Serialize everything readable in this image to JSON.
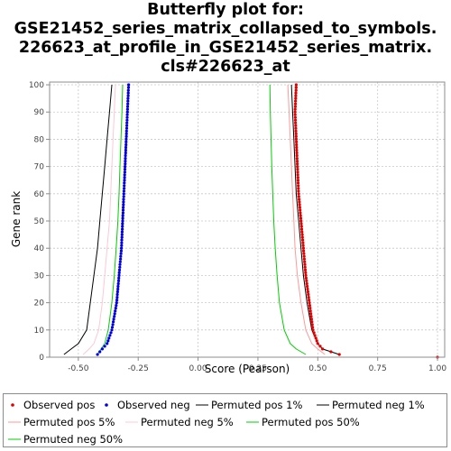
{
  "title_lines": [
    "Butterfly plot for:",
    "GSE21452_series_matrix_collapsed_to_symbols.",
    "226623_at_profile_in_GSE21452_series_matrix.",
    "cls#226623_at"
  ],
  "chart_data": {
    "type": "scatter",
    "title": "Butterfly plot for: GSE21452_series_matrix_collapsed_to_symbols.226623_at_profile_in_GSE21452_series_matrix.cls#226623_at",
    "xlabel": "Score (Pearson)",
    "ylabel": "Gene rank",
    "xlim": [
      -0.62,
      1.03
    ],
    "ylim": [
      0,
      101
    ],
    "x_ticks": [
      -0.5,
      -0.25,
      0.0,
      0.25,
      0.5,
      0.75,
      1.0
    ],
    "x_tick_labels": [
      "-0.50",
      "-0.25",
      "0.00",
      "0.25",
      "0.50",
      "0.75",
      "1.00"
    ],
    "y_ticks": [
      0,
      10,
      20,
      30,
      40,
      50,
      60,
      70,
      80,
      90,
      100
    ],
    "y_tick_labels": [
      "0",
      "10",
      "20",
      "30",
      "40",
      "50",
      "60",
      "70",
      "80",
      "90",
      "100"
    ],
    "grid": true,
    "legend_position": "bottom",
    "series": [
      {
        "name": "Observed pos",
        "kind": "points",
        "color": "#e00000",
        "points": [
          [
            0.41,
            100
          ],
          [
            0.405,
            90
          ],
          [
            0.41,
            80
          ],
          [
            0.415,
            70
          ],
          [
            0.42,
            60
          ],
          [
            0.43,
            50
          ],
          [
            0.44,
            40
          ],
          [
            0.45,
            30
          ],
          [
            0.465,
            20
          ],
          [
            0.48,
            10
          ],
          [
            0.5,
            5
          ],
          [
            0.52,
            3
          ],
          [
            0.59,
            1
          ],
          [
            1.0,
            0
          ]
        ]
      },
      {
        "name": "Observed neg",
        "kind": "points",
        "color": "#0000e0",
        "points": [
          [
            -0.29,
            100
          ],
          [
            -0.295,
            90
          ],
          [
            -0.3,
            80
          ],
          [
            -0.305,
            70
          ],
          [
            -0.31,
            60
          ],
          [
            -0.315,
            50
          ],
          [
            -0.32,
            40
          ],
          [
            -0.33,
            30
          ],
          [
            -0.34,
            20
          ],
          [
            -0.36,
            10
          ],
          [
            -0.38,
            5
          ],
          [
            -0.4,
            3
          ],
          [
            -0.42,
            1
          ]
        ]
      },
      {
        "name": "Permuted pos 1%",
        "kind": "line",
        "color": "#000000",
        "points": [
          [
            0.39,
            100
          ],
          [
            0.395,
            90
          ],
          [
            0.4,
            80
          ],
          [
            0.405,
            70
          ],
          [
            0.41,
            60
          ],
          [
            0.42,
            50
          ],
          [
            0.43,
            40
          ],
          [
            0.44,
            30
          ],
          [
            0.455,
            20
          ],
          [
            0.475,
            10
          ],
          [
            0.5,
            5
          ],
          [
            0.52,
            3
          ],
          [
            0.59,
            1
          ]
        ]
      },
      {
        "name": "Permuted neg 1%",
        "kind": "line",
        "color": "#000000",
        "points": [
          [
            -0.36,
            100
          ],
          [
            -0.37,
            90
          ],
          [
            -0.38,
            80
          ],
          [
            -0.39,
            70
          ],
          [
            -0.4,
            60
          ],
          [
            -0.41,
            50
          ],
          [
            -0.42,
            40
          ],
          [
            -0.435,
            30
          ],
          [
            -0.45,
            20
          ],
          [
            -0.465,
            10
          ],
          [
            -0.5,
            5
          ],
          [
            -0.53,
            3
          ],
          [
            -0.56,
            1
          ]
        ]
      },
      {
        "name": "Permuted pos 5%",
        "kind": "line",
        "color": "#ff9a9a",
        "points": [
          [
            0.375,
            100
          ],
          [
            0.38,
            90
          ],
          [
            0.385,
            80
          ],
          [
            0.39,
            70
          ],
          [
            0.395,
            60
          ],
          [
            0.4,
            50
          ],
          [
            0.405,
            40
          ],
          [
            0.415,
            30
          ],
          [
            0.43,
            20
          ],
          [
            0.45,
            10
          ],
          [
            0.475,
            5
          ],
          [
            0.5,
            3
          ],
          [
            0.53,
            1
          ]
        ]
      },
      {
        "name": "Permuted neg 5%",
        "kind": "line",
        "color": "#ffc8d6",
        "points": [
          [
            -0.345,
            100
          ],
          [
            -0.35,
            90
          ],
          [
            -0.355,
            80
          ],
          [
            -0.36,
            70
          ],
          [
            -0.365,
            60
          ],
          [
            -0.37,
            50
          ],
          [
            -0.38,
            40
          ],
          [
            -0.39,
            30
          ],
          [
            -0.4,
            20
          ],
          [
            -0.415,
            10
          ],
          [
            -0.435,
            5
          ],
          [
            -0.455,
            3
          ],
          [
            -0.48,
            1
          ]
        ]
      },
      {
        "name": "Permuted pos 50%",
        "kind": "line",
        "color": "#00d000",
        "points": [
          [
            0.3,
            100
          ],
          [
            0.302,
            90
          ],
          [
            0.305,
            80
          ],
          [
            0.308,
            70
          ],
          [
            0.312,
            60
          ],
          [
            0.316,
            50
          ],
          [
            0.322,
            40
          ],
          [
            0.33,
            30
          ],
          [
            0.34,
            20
          ],
          [
            0.36,
            10
          ],
          [
            0.385,
            5
          ],
          [
            0.41,
            3
          ],
          [
            0.45,
            1
          ]
        ]
      },
      {
        "name": "Permuted neg 50%",
        "kind": "line",
        "color": "#00d000",
        "points": [
          [
            -0.315,
            100
          ],
          [
            -0.318,
            90
          ],
          [
            -0.322,
            80
          ],
          [
            -0.326,
            70
          ],
          [
            -0.33,
            60
          ],
          [
            -0.335,
            50
          ],
          [
            -0.342,
            40
          ],
          [
            -0.35,
            30
          ],
          [
            -0.36,
            20
          ],
          [
            -0.375,
            10
          ],
          [
            -0.39,
            5
          ],
          [
            -0.405,
            3
          ],
          [
            -0.42,
            1
          ]
        ]
      }
    ]
  }
}
